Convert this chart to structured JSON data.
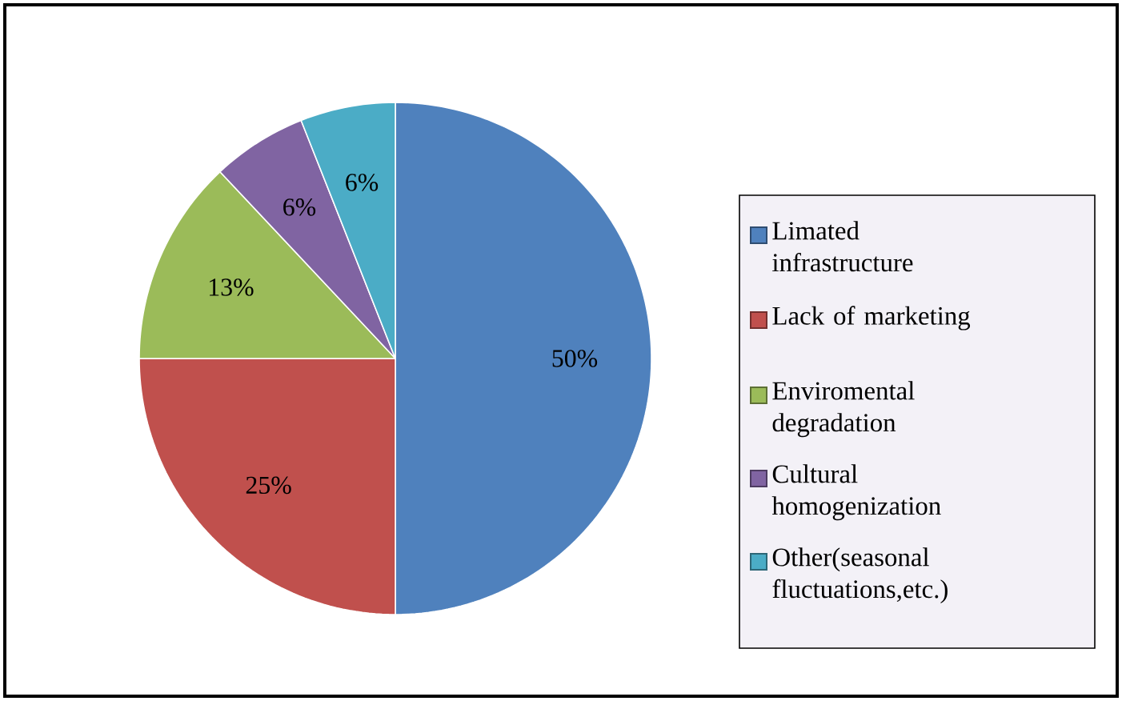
{
  "chart_data": {
    "type": "pie",
    "categories": [
      "Limated infrastructure",
      "Lack of marketing",
      "Enviromental degradation",
      "Cultural homogenization",
      "Other(seasonal fluctuations,etc.)"
    ],
    "values": [
      50,
      25,
      13,
      6,
      6
    ],
    "value_labels": [
      "50%",
      "25%",
      "13%",
      "6%",
      "6%"
    ],
    "colors": [
      "#4f81bd",
      "#c0504d",
      "#9bbb59",
      "#8064a2",
      "#4bacc6"
    ],
    "legend": "right"
  }
}
